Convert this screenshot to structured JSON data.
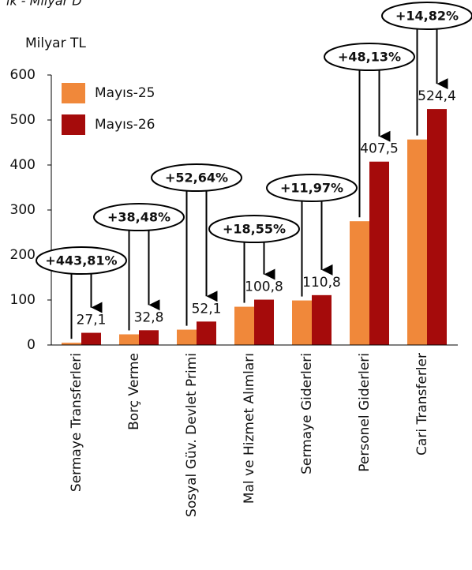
{
  "chart_data": {
    "type": "bar",
    "subtitle": "ik - Milyar D",
    "y_axis_label": "Milyar TL",
    "categories": [
      "Sermaye Transferleri",
      "Borç Verme",
      "Sosyal Güv. Devlet Primi",
      "Mal ve Hizmet Alımları",
      "Sermaye Giderleri",
      "Personel Giderleri",
      "Cari Transferler"
    ],
    "series": [
      {
        "name": "Mayıs-25",
        "color": "#f0883a",
        "values": [
          5.0,
          23.7,
          34.1,
          85.0,
          99.0,
          275.1,
          456.7
        ]
      },
      {
        "name": "Mayıs-26",
        "color": "#a50b0b",
        "values": [
          27.1,
          32.8,
          52.1,
          100.8,
          110.8,
          407.5,
          524.4
        ],
        "value_labels": [
          "27,1",
          "32,8",
          "52,1",
          "100,8",
          "110,8",
          "407,5",
          "524,4"
        ]
      }
    ],
    "annotations": [
      "+443,81%",
      "+38,48%",
      "+52,64%",
      "+18,55%",
      "+11,97%",
      "+48,13%",
      "+14,82%"
    ],
    "ylim": [
      0,
      600
    ],
    "yticks": [
      0,
      100,
      200,
      300,
      400,
      500,
      600
    ],
    "legend": "upper left"
  }
}
